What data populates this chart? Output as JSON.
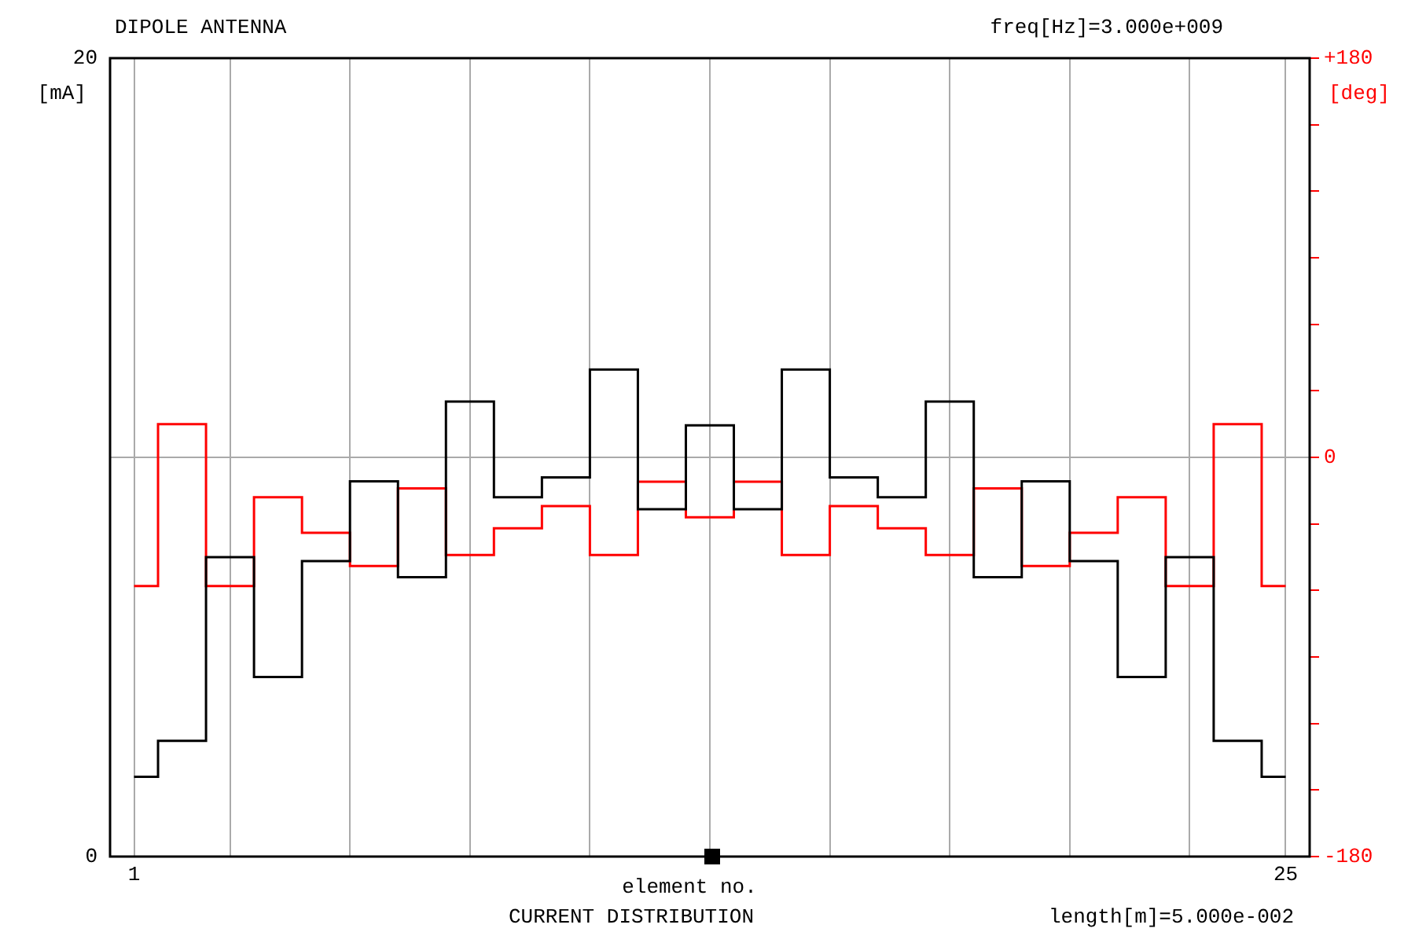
{
  "chart_data": {
    "type": "step",
    "title": "DIPOLE ANTENNA",
    "xlabel": "element no.",
    "ylabel": "[mA]",
    "y2label": "[deg]",
    "annotations": [
      "freq[Hz]=3.000e+009",
      "CURRENT DISTRIBUTION",
      "length[m]=5.000e-002"
    ],
    "x": [
      1,
      2,
      3,
      4,
      5,
      6,
      7,
      8,
      9,
      10,
      11,
      12,
      13,
      14,
      15,
      16,
      17,
      18,
      19,
      20,
      21,
      22,
      23,
      24,
      25
    ],
    "series": [
      {
        "color": "#000000",
        "values": [
          2.0,
          2.9,
          7.5,
          4.5,
          7.4,
          9.4,
          7.0,
          11.4,
          9.0,
          9.5,
          12.2,
          8.7,
          10.8,
          8.7,
          12.2,
          9.5,
          9.0,
          11.4,
          7.0,
          9.4,
          7.4,
          4.5,
          7.5,
          2.9,
          2.0
        ]
      },
      {
        "color": "#ff0000",
        "axis": "y2",
        "values": [
          -58,
          15,
          -58,
          -18,
          -34,
          -49,
          -14,
          -44,
          -32,
          -22,
          -44,
          -11,
          -27,
          -11,
          -44,
          -22,
          -32,
          -44,
          -14,
          -49,
          -34,
          -18,
          -58,
          15,
          -58
        ]
      }
    ],
    "xlim": [
      0.5,
      25.5
    ],
    "xticks": [
      {
        "value": 1,
        "label": "1"
      },
      {
        "value": 3,
        "label": null
      },
      {
        "value": 5.5,
        "label": null
      },
      {
        "value": 8,
        "label": null
      },
      {
        "value": 10.5,
        "label": null
      },
      {
        "value": 13,
        "label": null
      },
      {
        "value": 15.5,
        "label": null
      },
      {
        "value": 18,
        "label": null
      },
      {
        "value": 20.5,
        "label": null
      },
      {
        "value": 23,
        "label": null
      },
      {
        "value": 25,
        "label": "25"
      }
    ],
    "ylim": [
      0,
      20
    ],
    "yticks": [
      0,
      {
        "value": 10,
        "label": null
      },
      20
    ],
    "y2lim": [
      -180,
      180
    ],
    "y2ticks": [
      -180,
      {
        "value": -150,
        "label": null
      },
      {
        "value": -120,
        "label": null
      },
      {
        "value": -90,
        "label": null
      },
      {
        "value": -60,
        "label": null
      },
      {
        "value": -30,
        "label": null
      },
      0,
      {
        "value": 30,
        "label": null
      },
      {
        "value": 60,
        "label": null
      },
      {
        "value": 90,
        "label": null
      },
      {
        "value": 120,
        "label": null
      },
      {
        "value": 150,
        "label": null
      },
      {
        "value": 180,
        "label": "+180"
      }
    ],
    "grid": true,
    "legend": false
  }
}
